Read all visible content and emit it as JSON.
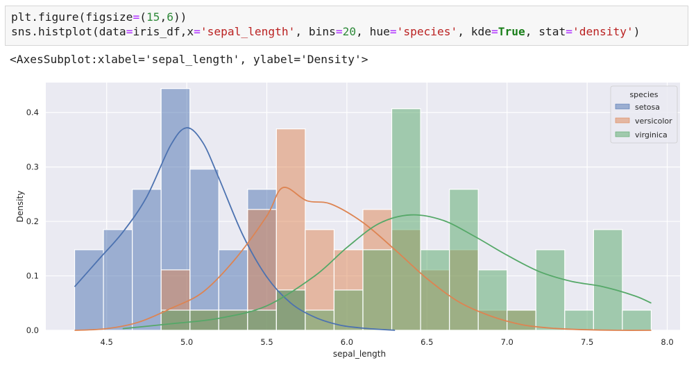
{
  "cell": {
    "line1": [
      {
        "t": "plt.figure(figsize",
        "c": ""
      },
      {
        "t": "=",
        "c": "op"
      },
      {
        "t": "(",
        "c": ""
      },
      {
        "t": "15",
        "c": "num"
      },
      {
        "t": ",",
        "c": ""
      },
      {
        "t": "6",
        "c": "num"
      },
      {
        "t": "))",
        "c": ""
      }
    ],
    "line2": [
      {
        "t": "sns.histplot(data",
        "c": ""
      },
      {
        "t": "=",
        "c": "op"
      },
      {
        "t": "iris_df,x",
        "c": ""
      },
      {
        "t": "=",
        "c": "op"
      },
      {
        "t": "'sepal_length'",
        "c": "str"
      },
      {
        "t": ", bins",
        "c": ""
      },
      {
        "t": "=",
        "c": "op"
      },
      {
        "t": "20",
        "c": "num"
      },
      {
        "t": ", hue",
        "c": ""
      },
      {
        "t": "=",
        "c": "op"
      },
      {
        "t": "'species'",
        "c": "str"
      },
      {
        "t": ", kde",
        "c": ""
      },
      {
        "t": "=",
        "c": "op"
      },
      {
        "t": "True",
        "c": "kw"
      },
      {
        "t": ", stat",
        "c": ""
      },
      {
        "t": "=",
        "c": "op"
      },
      {
        "t": "'density'",
        "c": "str"
      },
      {
        "t": ")",
        "c": ""
      }
    ]
  },
  "output_text": "<AxesSubplot:xlabel='sepal_length', ylabel='Density'>",
  "chart_data": {
    "type": "histogram",
    "xlabel": "sepal_length",
    "ylabel": "Density",
    "xlim": [
      4.12,
      8.08
    ],
    "ylim": [
      0,
      0.455
    ],
    "xticks": [
      "4.5",
      "5.0",
      "5.5",
      "6.0",
      "6.5",
      "7.0",
      "7.5",
      "8.0"
    ],
    "xtick_values": [
      4.5,
      5.0,
      5.5,
      6.0,
      6.5,
      7.0,
      7.5,
      8.0
    ],
    "yticks": [
      "0.0",
      "0.1",
      "0.2",
      "0.3",
      "0.4"
    ],
    "ytick_values": [
      0.0,
      0.1,
      0.2,
      0.3,
      0.4
    ],
    "grid": true,
    "background": "#eaeaf2",
    "legend": {
      "title": "species",
      "placement": "top-right"
    },
    "bin_edges": [
      4.3,
      4.48,
      4.66,
      4.84,
      5.02,
      5.2,
      5.38,
      5.56,
      5.74,
      5.92,
      6.1,
      6.28,
      6.46,
      6.64,
      6.82,
      7.0,
      7.18,
      7.36,
      7.54,
      7.72,
      7.9
    ],
    "series": [
      {
        "name": "setosa",
        "color": "#4c72b0",
        "densities": [
          0.148,
          0.185,
          0.259,
          0.444,
          0.296,
          0.148,
          0.259,
          0.074,
          0,
          0,
          0,
          0,
          0,
          0,
          0,
          0,
          0,
          0,
          0,
          0
        ],
        "kde_x": [
          4.3,
          4.45,
          4.6,
          4.75,
          4.9,
          5.0,
          5.1,
          5.2,
          5.35,
          5.5,
          5.65,
          5.8,
          5.95,
          6.1,
          6.3
        ],
        "kde_y": [
          0.08,
          0.13,
          0.18,
          0.245,
          0.34,
          0.372,
          0.345,
          0.28,
          0.175,
          0.098,
          0.05,
          0.024,
          0.01,
          0.004,
          0.0
        ]
      },
      {
        "name": "versicolor",
        "color": "#dd8452",
        "densities": [
          0,
          0,
          0,
          0.111,
          0.037,
          0.037,
          0.222,
          0.37,
          0.185,
          0.148,
          0.222,
          0.185,
          0.111,
          0.148,
          0.037,
          0.037,
          0,
          0,
          0,
          0
        ],
        "kde_x": [
          4.3,
          4.5,
          4.7,
          4.9,
          5.1,
          5.3,
          5.5,
          5.6,
          5.75,
          5.9,
          6.1,
          6.3,
          6.5,
          6.7,
          6.9,
          7.1,
          7.3,
          7.5,
          7.7,
          7.9
        ],
        "kde_y": [
          0.0,
          0.003,
          0.015,
          0.04,
          0.07,
          0.13,
          0.21,
          0.262,
          0.238,
          0.232,
          0.198,
          0.148,
          0.095,
          0.052,
          0.026,
          0.01,
          0.0035,
          0.001,
          0.0,
          0.0
        ]
      },
      {
        "name": "virginica",
        "color": "#55a868",
        "densities": [
          0,
          0,
          0,
          0.037,
          0.037,
          0.037,
          0.037,
          0.074,
          0.037,
          0.074,
          0.148,
          0.407,
          0.148,
          0.259,
          0.111,
          0.037,
          0.148,
          0.037,
          0.185,
          0.037
        ],
        "kde_x": [
          4.6,
          4.9,
          5.2,
          5.5,
          5.8,
          6.0,
          6.2,
          6.4,
          6.6,
          6.8,
          7.0,
          7.2,
          7.4,
          7.6,
          7.8,
          7.9
        ],
        "kde_y": [
          0.003,
          0.012,
          0.022,
          0.045,
          0.1,
          0.152,
          0.196,
          0.212,
          0.202,
          0.172,
          0.138,
          0.108,
          0.09,
          0.08,
          0.063,
          0.05
        ]
      }
    ]
  }
}
